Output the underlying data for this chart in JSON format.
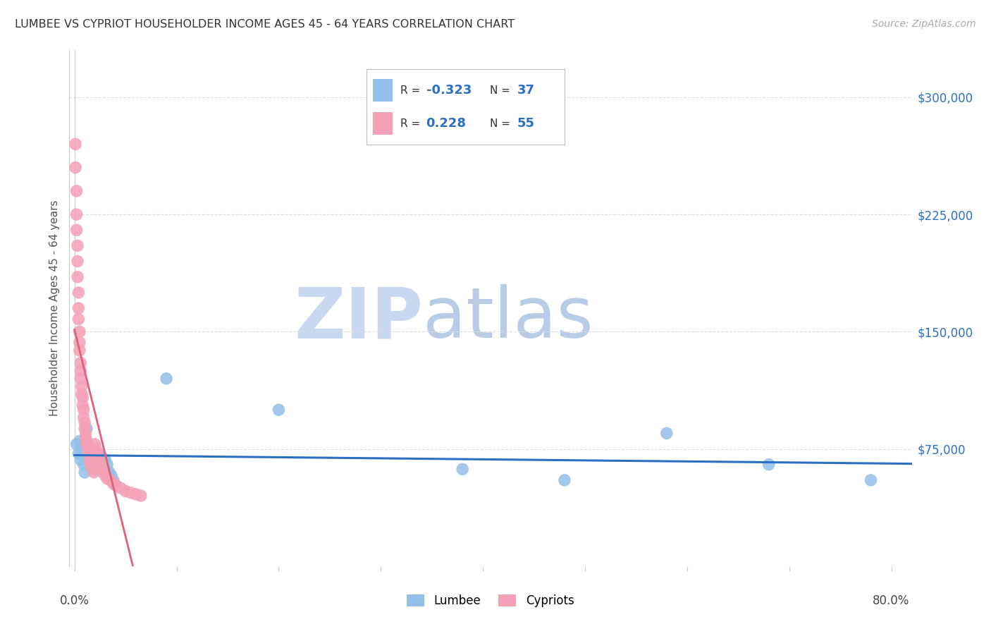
{
  "title": "LUMBEE VS CYPRIOT HOUSEHOLDER INCOME AGES 45 - 64 YEARS CORRELATION CHART",
  "source": "Source: ZipAtlas.com",
  "ylabel": "Householder Income Ages 45 - 64 years",
  "ytick_labels": [
    "$75,000",
    "$150,000",
    "$225,000",
    "$300,000"
  ],
  "ytick_values": [
    75000,
    150000,
    225000,
    300000
  ],
  "ylim": [
    0,
    330000
  ],
  "xlim": [
    -0.005,
    0.82
  ],
  "lumbee_R": "-0.323",
  "lumbee_N": "37",
  "cypriot_R": "0.228",
  "cypriot_N": "55",
  "legend_labels": [
    "Lumbee",
    "Cypriots"
  ],
  "blue_color": "#92c0e8",
  "pink_color": "#f4a0b5",
  "blue_line_color": "#2a6fc4",
  "pink_line_color": "#e0607a",
  "pink_dash_color": "#e8a0b0",
  "watermark_zip_color": "#c8d8f0",
  "watermark_atlas_color": "#b8cce8",
  "background_color": "#ffffff",
  "lumbee_x": [
    0.002,
    0.004,
    0.005,
    0.006,
    0.007,
    0.008,
    0.009,
    0.01,
    0.011,
    0.012,
    0.013,
    0.014,
    0.015,
    0.016,
    0.017,
    0.018,
    0.019,
    0.02,
    0.021,
    0.022,
    0.024,
    0.025,
    0.026,
    0.028,
    0.03,
    0.032,
    0.034,
    0.036,
    0.038,
    0.04,
    0.09,
    0.2,
    0.38,
    0.48,
    0.58,
    0.68,
    0.78
  ],
  "lumbee_y": [
    78000,
    72000,
    80000,
    68000,
    75000,
    73000,
    65000,
    60000,
    82000,
    88000,
    78000,
    72000,
    68000,
    65000,
    72000,
    70000,
    68000,
    73000,
    65000,
    62000,
    72000,
    68000,
    65000,
    62000,
    68000,
    65000,
    60000,
    58000,
    55000,
    52000,
    120000,
    100000,
    62000,
    55000,
    85000,
    65000,
    55000
  ],
  "cypriot_x": [
    0.001,
    0.001,
    0.002,
    0.002,
    0.002,
    0.003,
    0.003,
    0.003,
    0.004,
    0.004,
    0.004,
    0.005,
    0.005,
    0.005,
    0.006,
    0.006,
    0.006,
    0.007,
    0.007,
    0.008,
    0.008,
    0.009,
    0.009,
    0.01,
    0.01,
    0.011,
    0.011,
    0.012,
    0.012,
    0.013,
    0.014,
    0.015,
    0.015,
    0.016,
    0.017,
    0.018,
    0.019,
    0.02,
    0.021,
    0.022,
    0.023,
    0.024,
    0.025,
    0.026,
    0.028,
    0.03,
    0.032,
    0.035,
    0.038,
    0.04,
    0.045,
    0.05,
    0.055,
    0.06,
    0.065
  ],
  "cypriot_y": [
    270000,
    255000,
    240000,
    225000,
    215000,
    205000,
    195000,
    185000,
    175000,
    165000,
    158000,
    150000,
    143000,
    138000,
    130000,
    125000,
    120000,
    115000,
    110000,
    108000,
    103000,
    100000,
    95000,
    92000,
    88000,
    85000,
    82000,
    80000,
    78000,
    75000,
    73000,
    70000,
    68000,
    65000,
    63000,
    62000,
    60000,
    78000,
    75000,
    73000,
    70000,
    68000,
    65000,
    63000,
    60000,
    58000,
    56000,
    55000,
    53000,
    52000,
    50000,
    48000,
    47000,
    46000,
    45000
  ]
}
